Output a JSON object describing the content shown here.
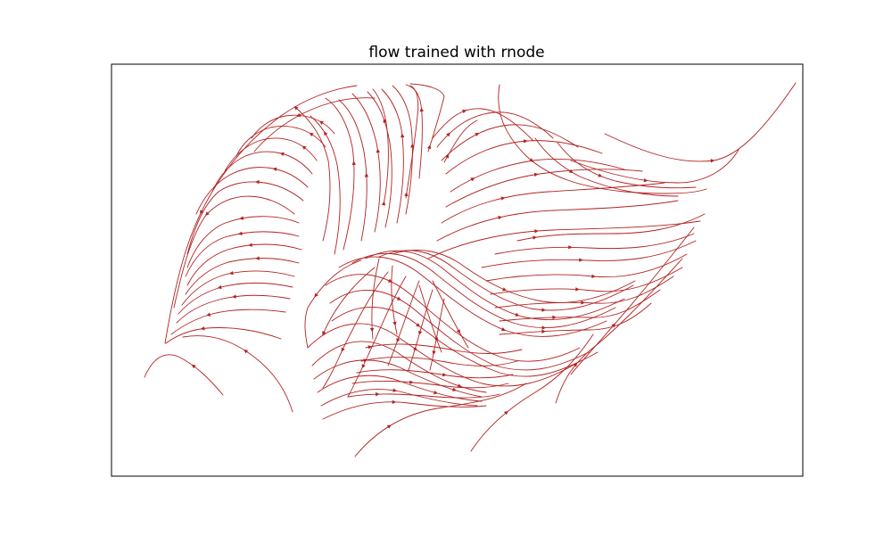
{
  "chart_data": {
    "type": "streamplot",
    "title": "flow trained with rnode",
    "xlabel": "",
    "ylabel": "",
    "grid": false,
    "ticks_visible": false,
    "line_color": "#b22222",
    "background": "#ffffff"
  }
}
